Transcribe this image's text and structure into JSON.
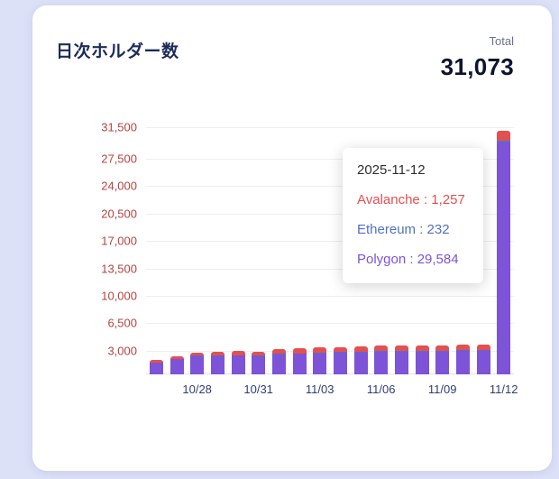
{
  "card": {
    "title": "日次ホルダー数",
    "total_label": "Total",
    "total_value": "31,073"
  },
  "tooltip": {
    "date": "2025-11-12",
    "separator": " : ",
    "items": [
      {
        "name": "Avalanche",
        "value": "1,257",
        "color": "#e4504f"
      },
      {
        "name": "Ethereum",
        "value": "232",
        "color": "#5470c6"
      },
      {
        "name": "Polygon",
        "value": "29,584",
        "color": "#7d53d8"
      }
    ]
  },
  "chart_data": {
    "type": "bar",
    "stacked": true,
    "title": "日次ホルダー数",
    "xlabel": "",
    "ylabel": "",
    "grid": true,
    "legend": "none",
    "ymax": 31500,
    "x": [
      "10/26",
      "10/27",
      "10/28",
      "10/29",
      "10/30",
      "10/31",
      "11/01",
      "11/02",
      "11/03",
      "11/04",
      "11/05",
      "11/06",
      "11/07",
      "11/08",
      "11/09",
      "11/10",
      "11/11",
      "11/12"
    ],
    "x_tick_labels": [
      "10/28",
      "10/31",
      "11/03",
      "11/06",
      "11/09",
      "11/12"
    ],
    "y_ticks": [
      {
        "label": "3,000",
        "value": 3000
      },
      {
        "label": "6,500",
        "value": 6500
      },
      {
        "label": "10,000",
        "value": 10000
      },
      {
        "label": "13,500",
        "value": 13500
      },
      {
        "label": "17,000",
        "value": 17000
      },
      {
        "label": "20,500",
        "value": 20500
      },
      {
        "label": "24,000",
        "value": 24000
      },
      {
        "label": "27,500",
        "value": 27500
      },
      {
        "label": "31,500",
        "value": 31500
      }
    ],
    "stack_order_bottom_to_top": [
      "Polygon",
      "Ethereum",
      "Avalanche"
    ],
    "series": [
      {
        "name": "Polygon",
        "color": "#7d53d8",
        "values": [
          1500,
          1950,
          2300,
          2350,
          2400,
          2350,
          2550,
          2600,
          2700,
          2750,
          2800,
          2850,
          2850,
          2900,
          2900,
          2950,
          2950,
          29584
        ]
      },
      {
        "name": "Ethereum",
        "color": "#5470c6",
        "values": [
          40,
          50,
          60,
          60,
          70,
          70,
          80,
          80,
          90,
          90,
          100,
          100,
          100,
          110,
          110,
          110,
          115,
          232
        ]
      },
      {
        "name": "Avalanche",
        "color": "#e4504f",
        "values": [
          250,
          350,
          450,
          480,
          500,
          490,
          550,
          600,
          620,
          650,
          660,
          680,
          690,
          700,
          700,
          710,
          710,
          1257
        ]
      }
    ],
    "axis_label_colors": {
      "y": "#b5443f",
      "x": "#2f3d77"
    }
  }
}
